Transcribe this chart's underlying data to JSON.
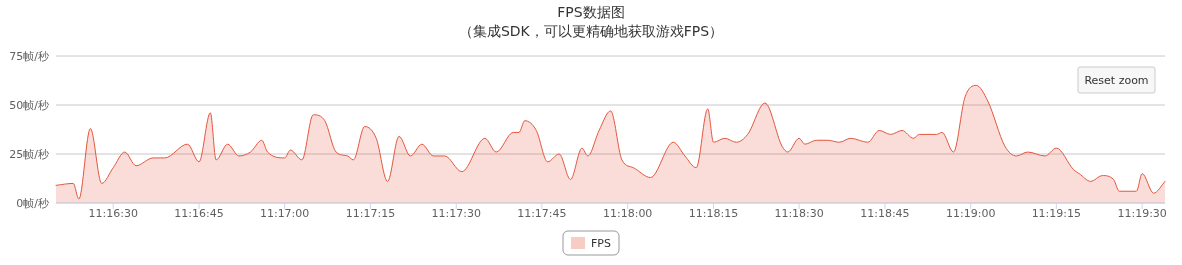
{
  "chart_data": {
    "type": "area",
    "title": "FPS数据图",
    "subtitle": "（集成SDK，可以更精确地获取游戏FPS）",
    "annotations": [
      "Reset zoom"
    ],
    "x": [
      11.27222,
      11.27306,
      11.27333,
      11.27389,
      11.27444,
      11.275,
      11.27556,
      11.27611,
      11.27694,
      11.2775,
      11.27861,
      11.27917,
      11.27972,
      11.28,
      11.28056,
      11.28111,
      11.28167,
      11.28222,
      11.2825,
      11.28333,
      11.28361,
      11.28417,
      11.28472,
      11.28528,
      11.28583,
      11.28639,
      11.28667,
      11.28722,
      11.28778,
      11.28833,
      11.28889,
      11.28944,
      11.29,
      11.29056,
      11.29111,
      11.29194,
      11.29306,
      11.29361,
      11.29444,
      11.29472,
      11.295,
      11.29556,
      11.29611,
      11.29667,
      11.29722,
      11.29778,
      11.29806,
      11.29861,
      11.29917,
      11.29972,
      11.30028,
      11.30111,
      11.30222,
      11.30278,
      11.30333,
      11.30389,
      11.30417,
      11.30472,
      11.30528,
      11.30583,
      11.30667,
      11.3075,
      11.30778,
      11.30833,
      11.30861,
      11.30917,
      11.30972,
      11.31028,
      11.31083,
      11.31167,
      11.31222,
      11.31278,
      11.31333,
      11.31389,
      11.31417,
      11.315,
      11.31528,
      11.31583,
      11.31639,
      11.31694,
      11.3175,
      11.31833,
      11.31889,
      11.31944,
      11.32028,
      11.32083,
      11.32167,
      11.32194,
      11.3225,
      11.32306,
      11.32361,
      11.32389,
      11.32472,
      11.325,
      11.32556,
      11.32611
    ],
    "series": [
      {
        "name": "FPS",
        "color": "#e4573f",
        "values": [
          9,
          10,
          2,
          38,
          10,
          18,
          26,
          19,
          23,
          23,
          30,
          21,
          46,
          22,
          30,
          24,
          26,
          32,
          26,
          23,
          27,
          22,
          45,
          42,
          26,
          24,
          22,
          39,
          33,
          11,
          34,
          24,
          30,
          24,
          24,
          16,
          33,
          26,
          36,
          36,
          42,
          37,
          21,
          25,
          12,
          28,
          24,
          37,
          47,
          22,
          18,
          13,
          31,
          24,
          18,
          48,
          31,
          33,
          31,
          35,
          51,
          29,
          26,
          33,
          30,
          32,
          32,
          31,
          33,
          31,
          37,
          35,
          37,
          33,
          35,
          35,
          36,
          26,
          54,
          60,
          52,
          29,
          24,
          26,
          24,
          28,
          17,
          15,
          11,
          14,
          12,
          6,
          6,
          15,
          5,
          11
        ]
      }
    ],
    "xlim": [
      11.27222,
      11.32611
    ],
    "xticks": [
      {
        "value": 11.275,
        "label": "11:16:30"
      },
      {
        "value": 11.27917,
        "label": "11:16:45"
      },
      {
        "value": 11.28333,
        "label": "11:17:00"
      },
      {
        "value": 11.2875,
        "label": "11:17:15"
      },
      {
        "value": 11.29167,
        "label": "11:17:30"
      },
      {
        "value": 11.29583,
        "label": "11:17:45"
      },
      {
        "value": 11.3,
        "label": "11:18:00"
      },
      {
        "value": 11.30417,
        "label": "11:18:15"
      },
      {
        "value": 11.30833,
        "label": "11:18:30"
      },
      {
        "value": 11.3125,
        "label": "11:18:45"
      },
      {
        "value": 11.31667,
        "label": "11:19:00"
      },
      {
        "value": 11.32083,
        "label": "11:19:15"
      },
      {
        "value": 11.325,
        "label": "11:19:30"
      }
    ],
    "ylim": [
      0,
      75
    ],
    "yticks": [
      {
        "value": 0,
        "label": "0帧/秒"
      },
      {
        "value": 25,
        "label": "25帧/秒"
      },
      {
        "value": 50,
        "label": "50帧/秒"
      },
      {
        "value": 75,
        "label": "75帧/秒"
      }
    ],
    "grid": "y",
    "legend": "bottom",
    "marker": "none",
    "line_style": "solid"
  }
}
